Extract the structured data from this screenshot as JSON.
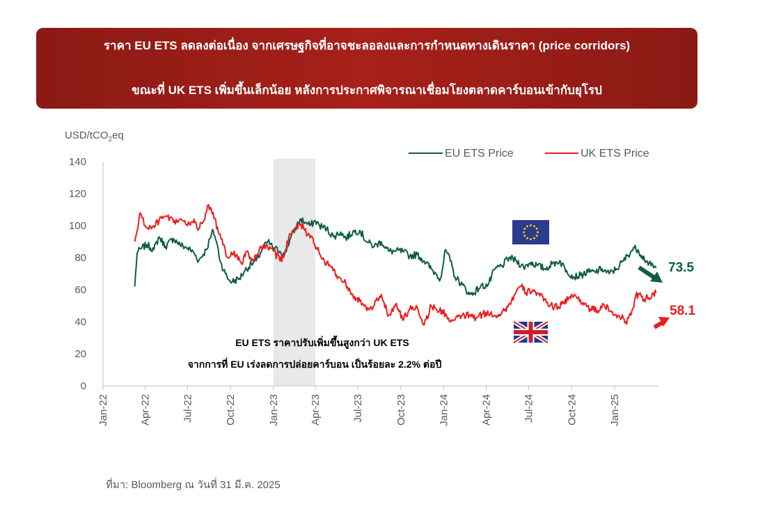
{
  "banner": {
    "line1": "ราคา EU ETS ลดลงต่อเนื่อง จากเศรษฐกิจที่อาจชะลอลงและการกำหนดทางเดินราคา (price corridors)",
    "line2": "ขณะที่ UK ETS เพิ่มขึ้นเล็กน้อย หลังการประกาศพิจารณาเชื่อมโยงตลาดคาร์บอนเข้ากับยุโรป"
  },
  "source": "ที่มา: Bloomberg ณ วันที่ 31 มี.ค. 2025",
  "colors": {
    "eu": "#0f5c45",
    "uk": "#ee1c1c",
    "shade": "#e9e9e9",
    "banner": "#a11d17"
  },
  "chart_data": {
    "type": "line",
    "ylabel": {
      "prefix": "USD/tCO",
      "sub": "2",
      "suffix": "eq"
    },
    "ylim": [
      0,
      140
    ],
    "yticks": [
      "0",
      "20",
      "40",
      "60",
      "80",
      "100",
      "120",
      "140"
    ],
    "x_range": [
      "2022-01-01",
      "2025-04-05"
    ],
    "xticks": [
      {
        "label": "Jan-22",
        "date": "2022-01-01"
      },
      {
        "label": "Apr-22",
        "date": "2022-04-01"
      },
      {
        "label": "Jul-22",
        "date": "2022-07-01"
      },
      {
        "label": "Oct-22",
        "date": "2022-10-01"
      },
      {
        "label": "Jan-23",
        "date": "2023-01-01"
      },
      {
        "label": "Apr-23",
        "date": "2023-04-01"
      },
      {
        "label": "Jul-23",
        "date": "2023-07-01"
      },
      {
        "label": "Oct-23",
        "date": "2023-10-01"
      },
      {
        "label": "Jan-24",
        "date": "2024-01-01"
      },
      {
        "label": "Apr-24",
        "date": "2024-04-01"
      },
      {
        "label": "Jul-24",
        "date": "2024-07-01"
      },
      {
        "label": "Oct-24",
        "date": "2024-10-01"
      },
      {
        "label": "Jan-25",
        "date": "2025-01-01"
      }
    ],
    "shaded_period": [
      "2023-01-01",
      "2023-04-01"
    ],
    "legend_position": "top-right",
    "series": [
      {
        "name": "EU ETS Price",
        "points": [
          [
            "2022-03-10",
            62
          ],
          [
            "2022-03-15",
            83
          ],
          [
            "2022-03-25",
            86
          ],
          [
            "2022-04-05",
            88
          ],
          [
            "2022-04-20",
            85
          ],
          [
            "2022-05-01",
            93
          ],
          [
            "2022-05-15",
            87
          ],
          [
            "2022-06-01",
            92
          ],
          [
            "2022-06-15",
            88
          ],
          [
            "2022-07-01",
            86
          ],
          [
            "2022-07-15",
            83
          ],
          [
            "2022-07-25",
            78
          ],
          [
            "2022-08-10",
            85
          ],
          [
            "2022-08-20",
            93
          ],
          [
            "2022-08-25",
            97
          ],
          [
            "2022-09-01",
            90
          ],
          [
            "2022-09-10",
            77
          ],
          [
            "2022-09-20",
            70
          ],
          [
            "2022-09-28",
            66
          ],
          [
            "2022-10-05",
            65
          ],
          [
            "2022-10-20",
            67
          ],
          [
            "2022-11-01",
            72
          ],
          [
            "2022-11-15",
            76
          ],
          [
            "2022-11-25",
            78
          ],
          [
            "2022-12-10",
            86
          ],
          [
            "2022-12-20",
            90
          ],
          [
            "2023-01-01",
            86
          ],
          [
            "2023-01-15",
            84
          ],
          [
            "2023-01-25",
            82
          ],
          [
            "2023-02-05",
            91
          ],
          [
            "2023-02-20",
            100
          ],
          [
            "2023-03-01",
            104
          ],
          [
            "2023-03-10",
            102
          ],
          [
            "2023-03-20",
            100
          ],
          [
            "2023-04-01",
            103
          ],
          [
            "2023-04-10",
            100
          ],
          [
            "2023-04-25",
            98
          ],
          [
            "2023-05-10",
            93
          ],
          [
            "2023-05-25",
            96
          ],
          [
            "2023-06-05",
            92
          ],
          [
            "2023-06-20",
            96
          ],
          [
            "2023-07-05",
            97
          ],
          [
            "2023-07-20",
            90
          ],
          [
            "2023-08-05",
            87
          ],
          [
            "2023-08-20",
            90
          ],
          [
            "2023-09-05",
            84
          ],
          [
            "2023-09-20",
            84
          ],
          [
            "2023-10-05",
            84
          ],
          [
            "2023-10-20",
            81
          ],
          [
            "2023-11-05",
            82
          ],
          [
            "2023-11-20",
            78
          ],
          [
            "2023-12-05",
            73
          ],
          [
            "2023-12-15",
            70
          ],
          [
            "2023-12-25",
            67
          ],
          [
            "2024-01-05",
            85
          ],
          [
            "2024-01-15",
            78
          ],
          [
            "2024-01-25",
            68
          ],
          [
            "2024-02-10",
            63
          ],
          [
            "2024-02-25",
            57
          ],
          [
            "2024-03-05",
            58
          ],
          [
            "2024-03-20",
            62
          ],
          [
            "2024-04-05",
            63
          ],
          [
            "2024-04-20",
            73
          ],
          [
            "2024-05-05",
            75
          ],
          [
            "2024-05-20",
            80
          ],
          [
            "2024-06-05",
            78
          ],
          [
            "2024-06-20",
            74
          ],
          [
            "2024-07-05",
            77
          ],
          [
            "2024-07-20",
            75
          ],
          [
            "2024-08-05",
            73
          ],
          [
            "2024-08-20",
            76
          ],
          [
            "2024-09-05",
            78
          ],
          [
            "2024-09-20",
            72
          ],
          [
            "2024-10-05",
            68
          ],
          [
            "2024-10-20",
            69
          ],
          [
            "2024-11-05",
            71
          ],
          [
            "2024-11-20",
            71
          ],
          [
            "2024-12-05",
            73
          ],
          [
            "2024-12-20",
            70
          ],
          [
            "2025-01-05",
            73
          ],
          [
            "2025-01-20",
            78
          ],
          [
            "2025-02-05",
            84
          ],
          [
            "2025-02-12",
            86
          ],
          [
            "2025-02-20",
            85
          ],
          [
            "2025-03-01",
            81
          ],
          [
            "2025-03-10",
            78
          ],
          [
            "2025-03-20",
            75
          ],
          [
            "2025-03-31",
            73.5
          ]
        ],
        "end_label": "73.5"
      },
      {
        "name": "UK ETS Price",
        "points": [
          [
            "2022-03-10",
            90
          ],
          [
            "2022-03-15",
            97
          ],
          [
            "2022-03-22",
            108
          ],
          [
            "2022-04-01",
            100
          ],
          [
            "2022-04-15",
            98
          ],
          [
            "2022-05-01",
            103
          ],
          [
            "2022-05-15",
            106
          ],
          [
            "2022-06-01",
            102
          ],
          [
            "2022-06-15",
            104
          ],
          [
            "2022-07-01",
            100
          ],
          [
            "2022-07-15",
            104
          ],
          [
            "2022-07-25",
            98
          ],
          [
            "2022-08-05",
            103
          ],
          [
            "2022-08-15",
            113
          ],
          [
            "2022-08-25",
            108
          ],
          [
            "2022-09-05",
            96
          ],
          [
            "2022-09-15",
            88
          ],
          [
            "2022-09-25",
            80
          ],
          [
            "2022-10-05",
            82
          ],
          [
            "2022-10-15",
            82
          ],
          [
            "2022-10-25",
            76
          ],
          [
            "2022-11-05",
            84
          ],
          [
            "2022-11-15",
            78
          ],
          [
            "2022-11-25",
            80
          ],
          [
            "2022-12-10",
            88
          ],
          [
            "2022-12-20",
            86
          ],
          [
            "2023-01-01",
            84
          ],
          [
            "2023-01-15",
            78
          ],
          [
            "2023-01-25",
            82
          ],
          [
            "2023-02-05",
            95
          ],
          [
            "2023-02-20",
            100
          ],
          [
            "2023-03-01",
            101
          ],
          [
            "2023-03-15",
            94
          ],
          [
            "2023-03-25",
            93
          ],
          [
            "2023-04-05",
            85
          ],
          [
            "2023-04-20",
            78
          ],
          [
            "2023-05-05",
            74
          ],
          [
            "2023-05-20",
            68
          ],
          [
            "2023-06-05",
            64
          ],
          [
            "2023-06-20",
            57
          ],
          [
            "2023-07-05",
            53
          ],
          [
            "2023-07-20",
            47
          ],
          [
            "2023-08-05",
            50
          ],
          [
            "2023-08-20",
            57
          ],
          [
            "2023-09-05",
            44
          ],
          [
            "2023-09-20",
            51
          ],
          [
            "2023-10-05",
            41
          ],
          [
            "2023-10-20",
            48
          ],
          [
            "2023-11-05",
            49
          ],
          [
            "2023-11-20",
            38
          ],
          [
            "2023-12-05",
            50
          ],
          [
            "2023-12-15",
            48
          ],
          [
            "2024-01-05",
            45
          ],
          [
            "2024-01-15",
            40
          ],
          [
            "2024-01-25",
            41
          ],
          [
            "2024-02-10",
            44
          ],
          [
            "2024-02-25",
            44
          ],
          [
            "2024-03-10",
            42
          ],
          [
            "2024-03-25",
            45
          ],
          [
            "2024-04-10",
            45
          ],
          [
            "2024-04-25",
            44
          ],
          [
            "2024-05-10",
            47
          ],
          [
            "2024-05-25",
            53
          ],
          [
            "2024-06-05",
            59
          ],
          [
            "2024-06-15",
            62
          ],
          [
            "2024-06-25",
            58
          ],
          [
            "2024-07-10",
            60
          ],
          [
            "2024-07-25",
            56
          ],
          [
            "2024-08-10",
            52
          ],
          [
            "2024-08-25",
            49
          ],
          [
            "2024-09-10",
            51
          ],
          [
            "2024-09-25",
            55
          ],
          [
            "2024-10-10",
            56
          ],
          [
            "2024-10-25",
            52
          ],
          [
            "2024-11-10",
            48
          ],
          [
            "2024-11-25",
            47
          ],
          [
            "2024-12-10",
            50
          ],
          [
            "2024-12-25",
            46
          ],
          [
            "2025-01-10",
            44
          ],
          [
            "2025-01-25",
            40
          ],
          [
            "2025-02-05",
            44
          ],
          [
            "2025-02-15",
            56
          ],
          [
            "2025-02-25",
            58
          ],
          [
            "2025-03-05",
            54
          ],
          [
            "2025-03-15",
            55
          ],
          [
            "2025-03-31",
            58.1
          ]
        ],
        "end_label": "58.1"
      }
    ],
    "annotation": {
      "line1": "EU ETS ราคาปรับเพิ่มขึ้นสูงกว่า UK ETS",
      "line2": "จากการที่ EU เร่งลดการปล่อยคาร์บอน เป็นร้อยละ 2.2% ต่อปี"
    }
  }
}
